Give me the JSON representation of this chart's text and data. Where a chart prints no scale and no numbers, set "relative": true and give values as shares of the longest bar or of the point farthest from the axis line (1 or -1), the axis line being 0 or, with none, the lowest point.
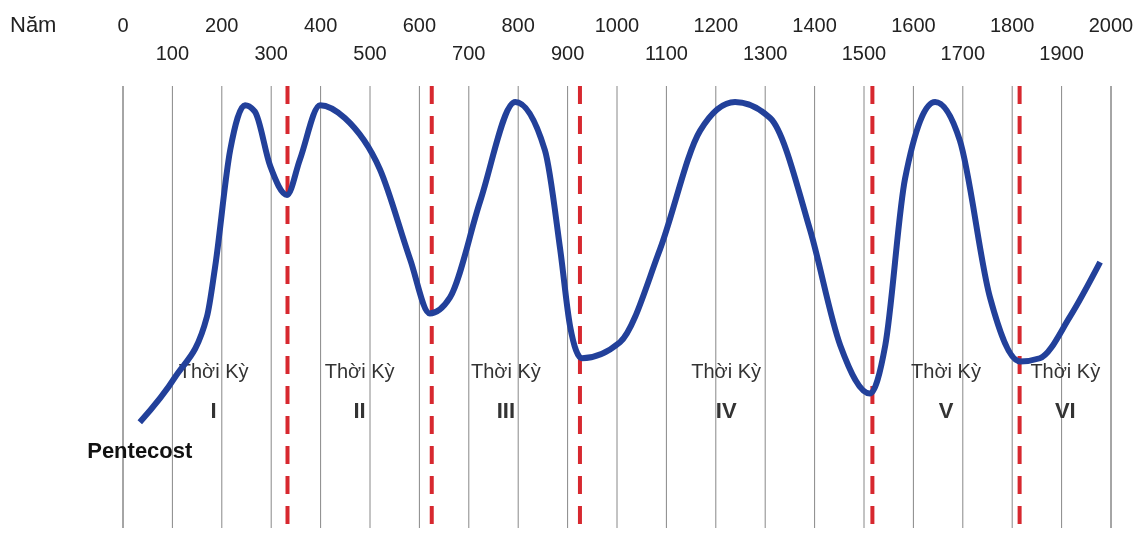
{
  "chart_data": {
    "type": "line",
    "relative": true,
    "xlabel": "Năm",
    "x": [
      34,
      105,
      170,
      186,
      217,
      247,
      267,
      298,
      332,
      358,
      399,
      449,
      520,
      581,
      621,
      662,
      723,
      794,
      854,
      885,
      905,
      929,
      1006,
      1087,
      1168,
      1239,
      1310,
      1391,
      1452,
      1512,
      1543,
      1583,
      1644,
      1694,
      1755,
      1816,
      1856,
      1917,
      1978
    ],
    "series": [
      {
        "color": "#22409a",
        "values": [
          0,
          0.14,
          0.33,
          0.48,
          0.85,
          0.99,
          0.97,
          0.8,
          0.71,
          0.82,
          0.99,
          0.95,
          0.79,
          0.51,
          0.34,
          0.39,
          0.69,
          1,
          0.85,
          0.54,
          0.3,
          0.2,
          0.25,
          0.54,
          0.91,
          1,
          0.95,
          0.6,
          0.24,
          0.09,
          0.24,
          0.76,
          1,
          0.88,
          0.39,
          0.19,
          0.2,
          0.33,
          0.5
        ]
      }
    ],
    "xlim": [
      0,
      2000
    ],
    "xticks": [
      0,
      200,
      400,
      600,
      800,
      1000,
      1200,
      1400,
      1600,
      1800,
      2000
    ],
    "x2lim": [
      0,
      2000
    ],
    "x2ticks": [
      100,
      300,
      500,
      700,
      900,
      1100,
      1300,
      1500,
      1700,
      1900
    ],
    "grid": "x",
    "marker": "none",
    "line_style": "solid",
    "ref_lines": [
      {
        "axis": "x",
        "value": 333,
        "color": "#d7282f",
        "line_style": "dashed"
      },
      {
        "axis": "x",
        "value": 625,
        "color": "#d7282f",
        "line_style": "dashed"
      },
      {
        "axis": "x",
        "value": 925,
        "color": "#d7282f",
        "line_style": "dashed"
      },
      {
        "axis": "x",
        "value": 1517,
        "color": "#d7282f",
        "line_style": "dashed"
      },
      {
        "axis": "x",
        "value": 1815,
        "color": "#d7282f",
        "line_style": "dashed"
      }
    ],
    "annotations": [
      {
        "text": "Pentecost",
        "x": 34,
        "y": 0
      },
      "Thời Kỳ I",
      "Thời Kỳ II",
      "Thời Kỳ III",
      "Thời Kỳ IV",
      "Thời Kỳ V",
      "Thời Kỳ VI"
    ]
  }
}
